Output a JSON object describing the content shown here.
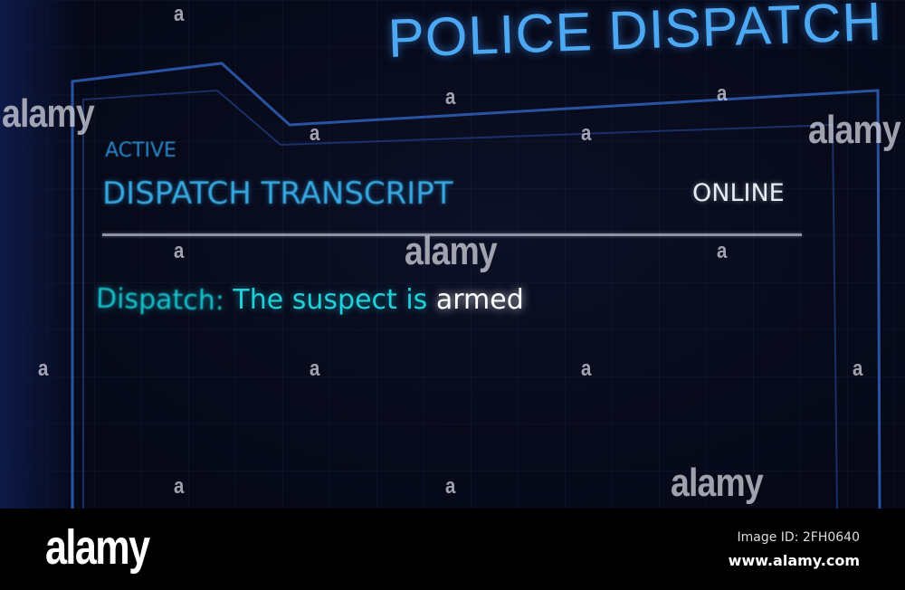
{
  "header": {
    "title": "POLICE DISPATCH"
  },
  "panel": {
    "status_label": "ACTIVE",
    "title": "DISPATCH TRANSCRIPT",
    "connection_status": "ONLINE",
    "transcript": [
      {
        "speaker": "Dispatch:",
        "text": "The suspect is",
        "highlight": "armed"
      }
    ]
  },
  "colors": {
    "accent": "#4da8f2",
    "transcript": "#22d0db",
    "background": "#070a1a"
  },
  "watermark": {
    "text": "alamy",
    "small": "a"
  },
  "footer": {
    "logo": "alamy",
    "image_id": "Image ID: 2FH0640",
    "url": "www.alamy.com"
  }
}
